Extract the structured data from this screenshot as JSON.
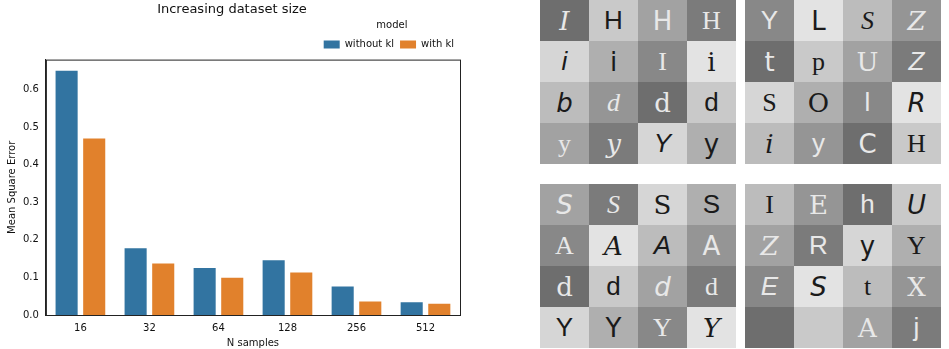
{
  "chart_data": {
    "type": "bar",
    "title": "Increasing dataset size",
    "x_label": "N samples",
    "y_label": "Mean Square Error",
    "categories": [
      "16",
      "32",
      "64",
      "128",
      "256",
      "512"
    ],
    "series": [
      {
        "name": "without kl",
        "color": "#3274a1",
        "values": [
          0.65,
          0.178,
          0.125,
          0.146,
          0.076,
          0.034
        ]
      },
      {
        "name": "with kl",
        "color": "#e1812c",
        "values": [
          0.47,
          0.137,
          0.099,
          0.113,
          0.036,
          0.03
        ]
      }
    ],
    "ylim": [
      0,
      0.68
    ],
    "yticks": [
      {
        "value": 0,
        "label": "0.0"
      },
      0.1,
      0.2,
      0.3,
      0.4,
      0.5,
      0.6
    ],
    "grid": false,
    "legend": "upper right",
    "legend_title": "model"
  },
  "image_grids": [
    [
      [
        "I",
        "H",
        "H",
        "H"
      ],
      [
        "i",
        "i",
        "I",
        "i"
      ],
      [
        "b",
        "d",
        "d",
        "d"
      ],
      [
        "y",
        "y",
        "Y",
        "y"
      ]
    ],
    [
      [
        "Y",
        "L",
        "S",
        "Z"
      ],
      [
        "t",
        "p",
        "U",
        "Z"
      ],
      [
        "S",
        "O",
        "l",
        "R"
      ],
      [
        "i",
        "y",
        "C",
        "H"
      ]
    ],
    [
      [
        "S",
        "S",
        "S",
        "S"
      ],
      [
        "A",
        "A",
        "A",
        "A"
      ],
      [
        "d",
        "d",
        "d",
        "d"
      ],
      [
        "Y",
        "Y",
        "Y",
        "Y"
      ]
    ],
    [
      [
        "I",
        "E",
        "h",
        "U"
      ],
      [
        "Z",
        "R",
        "y",
        "Y"
      ],
      [
        "E",
        "S",
        "t",
        "X"
      ],
      [
        null,
        null,
        "A",
        "j"
      ]
    ]
  ]
}
